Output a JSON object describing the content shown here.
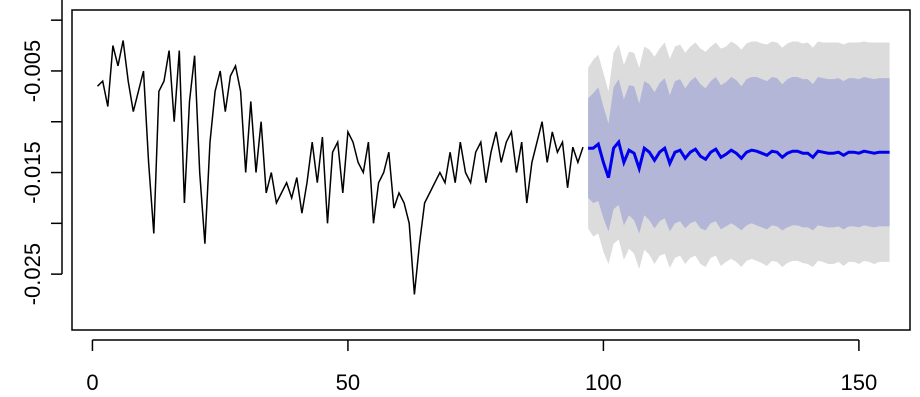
{
  "chart_data": {
    "type": "line",
    "title": "",
    "xlabel": "",
    "ylabel": "",
    "xlim": [
      -4,
      160
    ],
    "ylim": [
      -0.0305,
      0.001
    ],
    "xticks": [
      0,
      50,
      100,
      150
    ],
    "yticks": [
      -0.025,
      -0.015,
      -0.005
    ],
    "xtick_labels": [
      "0",
      "50",
      "100",
      "150"
    ],
    "ytick_labels": [
      "-0.025",
      "-0.015",
      "-0.005"
    ],
    "grid": false,
    "legend": "none",
    "colors": {
      "history": "#000000",
      "forecast": "#0000ee",
      "band80": "#b3b6d6",
      "band95": "#dcdcdc"
    },
    "series": [
      {
        "role": "history",
        "x": [
          1,
          2,
          3,
          4,
          5,
          6,
          7,
          8,
          9,
          10,
          11,
          12,
          13,
          14,
          15,
          16,
          17,
          18,
          19,
          20,
          21,
          22,
          23,
          24,
          25,
          26,
          27,
          28,
          29,
          30,
          31,
          32,
          33,
          34,
          35,
          36,
          37,
          38,
          39,
          40,
          41,
          42,
          43,
          44,
          45,
          46,
          47,
          48,
          49,
          50,
          51,
          52,
          53,
          54,
          55,
          56,
          57,
          58,
          59,
          60,
          61,
          62,
          63,
          64,
          65,
          66,
          67,
          68,
          69,
          70,
          71,
          72,
          73,
          74,
          75,
          76,
          77,
          78,
          79,
          80,
          81,
          82,
          83,
          84,
          85,
          86,
          87,
          88,
          89,
          90,
          91,
          92,
          93,
          94,
          95,
          96
        ],
        "y": [
          -0.0065,
          -0.006,
          -0.0085,
          -0.0025,
          -0.0045,
          -0.002,
          -0.006,
          -0.009,
          -0.007,
          -0.005,
          -0.014,
          -0.021,
          -0.007,
          -0.006,
          -0.003,
          -0.01,
          -0.003,
          -0.018,
          -0.008,
          -0.0035,
          -0.015,
          -0.022,
          -0.012,
          -0.007,
          -0.005,
          -0.009,
          -0.0055,
          -0.0045,
          -0.007,
          -0.015,
          -0.008,
          -0.015,
          -0.01,
          -0.017,
          -0.015,
          -0.018,
          -0.017,
          -0.016,
          -0.0175,
          -0.0155,
          -0.019,
          -0.016,
          -0.012,
          -0.016,
          -0.0115,
          -0.02,
          -0.013,
          -0.012,
          -0.017,
          -0.011,
          -0.012,
          -0.014,
          -0.015,
          -0.012,
          -0.02,
          -0.016,
          -0.015,
          -0.013,
          -0.0185,
          -0.017,
          -0.018,
          -0.02,
          -0.027,
          -0.022,
          -0.018,
          -0.017,
          -0.016,
          -0.015,
          -0.016,
          -0.013,
          -0.016,
          -0.012,
          -0.015,
          -0.016,
          -0.013,
          -0.012,
          -0.016,
          -0.013,
          -0.011,
          -0.014,
          -0.012,
          -0.011,
          -0.015,
          -0.012,
          -0.018,
          -0.014,
          -0.012,
          -0.01,
          -0.014,
          -0.011,
          -0.013,
          -0.012,
          -0.0165,
          -0.0125,
          -0.014,
          -0.0125
        ]
      },
      {
        "role": "forecast",
        "x": [
          97,
          98,
          99,
          100,
          101,
          102,
          103,
          104,
          105,
          106,
          107,
          108,
          109,
          110,
          111,
          112,
          113,
          114,
          115,
          116,
          117,
          118,
          119,
          120,
          121,
          122,
          123,
          124,
          125,
          126,
          127,
          128,
          129,
          130,
          131,
          132,
          133,
          134,
          135,
          136,
          137,
          138,
          139,
          140,
          141,
          142,
          143,
          144,
          145,
          146,
          147,
          148,
          149,
          150,
          151,
          152,
          153,
          154,
          155,
          156
        ],
        "y": [
          -0.0126,
          -0.0126,
          -0.0122,
          -0.014,
          -0.0155,
          -0.0126,
          -0.012,
          -0.014,
          -0.0128,
          -0.0131,
          -0.0146,
          -0.0126,
          -0.013,
          -0.0138,
          -0.013,
          -0.0126,
          -0.0141,
          -0.013,
          -0.0128,
          -0.0136,
          -0.013,
          -0.0127,
          -0.0134,
          -0.0137,
          -0.013,
          -0.0127,
          -0.0135,
          -0.0132,
          -0.0128,
          -0.0131,
          -0.0136,
          -0.013,
          -0.0128,
          -0.0129,
          -0.0131,
          -0.0133,
          -0.0129,
          -0.013,
          -0.0135,
          -0.0131,
          -0.0129,
          -0.0129,
          -0.0131,
          -0.0131,
          -0.0135,
          -0.0129,
          -0.013,
          -0.0131,
          -0.0131,
          -0.013,
          -0.0133,
          -0.013,
          -0.013,
          -0.0131,
          -0.0129,
          -0.013,
          -0.0131,
          -0.013,
          -0.013,
          -0.013
        ],
        "lower80": [
          -0.0175,
          -0.018,
          -0.0178,
          -0.0195,
          -0.0208,
          -0.0186,
          -0.0182,
          -0.0202,
          -0.0192,
          -0.0197,
          -0.021,
          -0.0192,
          -0.0197,
          -0.0205,
          -0.0198,
          -0.0195,
          -0.0208,
          -0.02,
          -0.0198,
          -0.0205,
          -0.02,
          -0.0198,
          -0.0205,
          -0.0207,
          -0.02,
          -0.0198,
          -0.0206,
          -0.0203,
          -0.02,
          -0.0203,
          -0.0207,
          -0.0202,
          -0.02,
          -0.0202,
          -0.0204,
          -0.0206,
          -0.0202,
          -0.0203,
          -0.0207,
          -0.0204,
          -0.0202,
          -0.0202,
          -0.0204,
          -0.0204,
          -0.0207,
          -0.0202,
          -0.0203,
          -0.0204,
          -0.0204,
          -0.0203,
          -0.0206,
          -0.0203,
          -0.0203,
          -0.0204,
          -0.0202,
          -0.0203,
          -0.0204,
          -0.0203,
          -0.0203,
          -0.0203
        ],
        "upper80": [
          -0.0077,
          -0.0072,
          -0.0066,
          -0.0085,
          -0.0102,
          -0.0066,
          -0.0058,
          -0.0078,
          -0.0064,
          -0.0065,
          -0.0082,
          -0.006,
          -0.0063,
          -0.0071,
          -0.0062,
          -0.0057,
          -0.0074,
          -0.006,
          -0.0058,
          -0.0067,
          -0.006,
          -0.0056,
          -0.0063,
          -0.0067,
          -0.006,
          -0.0056,
          -0.0064,
          -0.0061,
          -0.0056,
          -0.0059,
          -0.0065,
          -0.0058,
          -0.0056,
          -0.0056,
          -0.0058,
          -0.006,
          -0.0056,
          -0.0057,
          -0.0063,
          -0.0058,
          -0.0056,
          -0.0056,
          -0.0058,
          -0.0058,
          -0.0063,
          -0.0056,
          -0.0057,
          -0.0058,
          -0.0058,
          -0.0057,
          -0.006,
          -0.0057,
          -0.0057,
          -0.0058,
          -0.0056,
          -0.0057,
          -0.0058,
          -0.0057,
          -0.0057,
          -0.0057
        ],
        "lower95": [
          -0.0205,
          -0.0213,
          -0.021,
          -0.0228,
          -0.024,
          -0.022,
          -0.0216,
          -0.0236,
          -0.0225,
          -0.023,
          -0.0245,
          -0.0226,
          -0.0231,
          -0.024,
          -0.0232,
          -0.023,
          -0.0244,
          -0.0234,
          -0.0232,
          -0.024,
          -0.0234,
          -0.0232,
          -0.024,
          -0.0243,
          -0.0234,
          -0.0232,
          -0.0242,
          -0.0238,
          -0.0235,
          -0.0238,
          -0.0243,
          -0.0237,
          -0.0235,
          -0.0237,
          -0.0239,
          -0.0242,
          -0.0237,
          -0.0238,
          -0.0243,
          -0.0239,
          -0.0237,
          -0.0237,
          -0.0239,
          -0.024,
          -0.0243,
          -0.0237,
          -0.0238,
          -0.024,
          -0.024,
          -0.0238,
          -0.0242,
          -0.0238,
          -0.0238,
          -0.024,
          -0.0237,
          -0.0238,
          -0.024,
          -0.0238,
          -0.0238,
          -0.0238
        ],
        "upper95": [
          -0.0047,
          -0.0039,
          -0.0034,
          -0.0052,
          -0.007,
          -0.0032,
          -0.0024,
          -0.0044,
          -0.0031,
          -0.0032,
          -0.0047,
          -0.0026,
          -0.0029,
          -0.0036,
          -0.0028,
          -0.0022,
          -0.0038,
          -0.0026,
          -0.0024,
          -0.0032,
          -0.0026,
          -0.0022,
          -0.0028,
          -0.0031,
          -0.0026,
          -0.0022,
          -0.0028,
          -0.0026,
          -0.0021,
          -0.0024,
          -0.0029,
          -0.0023,
          -0.0021,
          -0.0021,
          -0.0023,
          -0.0024,
          -0.0021,
          -0.0022,
          -0.0027,
          -0.0023,
          -0.0021,
          -0.0021,
          -0.0023,
          -0.0022,
          -0.0027,
          -0.0021,
          -0.0022,
          -0.0022,
          -0.0022,
          -0.0022,
          -0.0024,
          -0.0022,
          -0.0022,
          -0.0022,
          -0.0021,
          -0.0022,
          -0.0022,
          -0.0022,
          -0.0022,
          -0.0022
        ]
      }
    ]
  }
}
